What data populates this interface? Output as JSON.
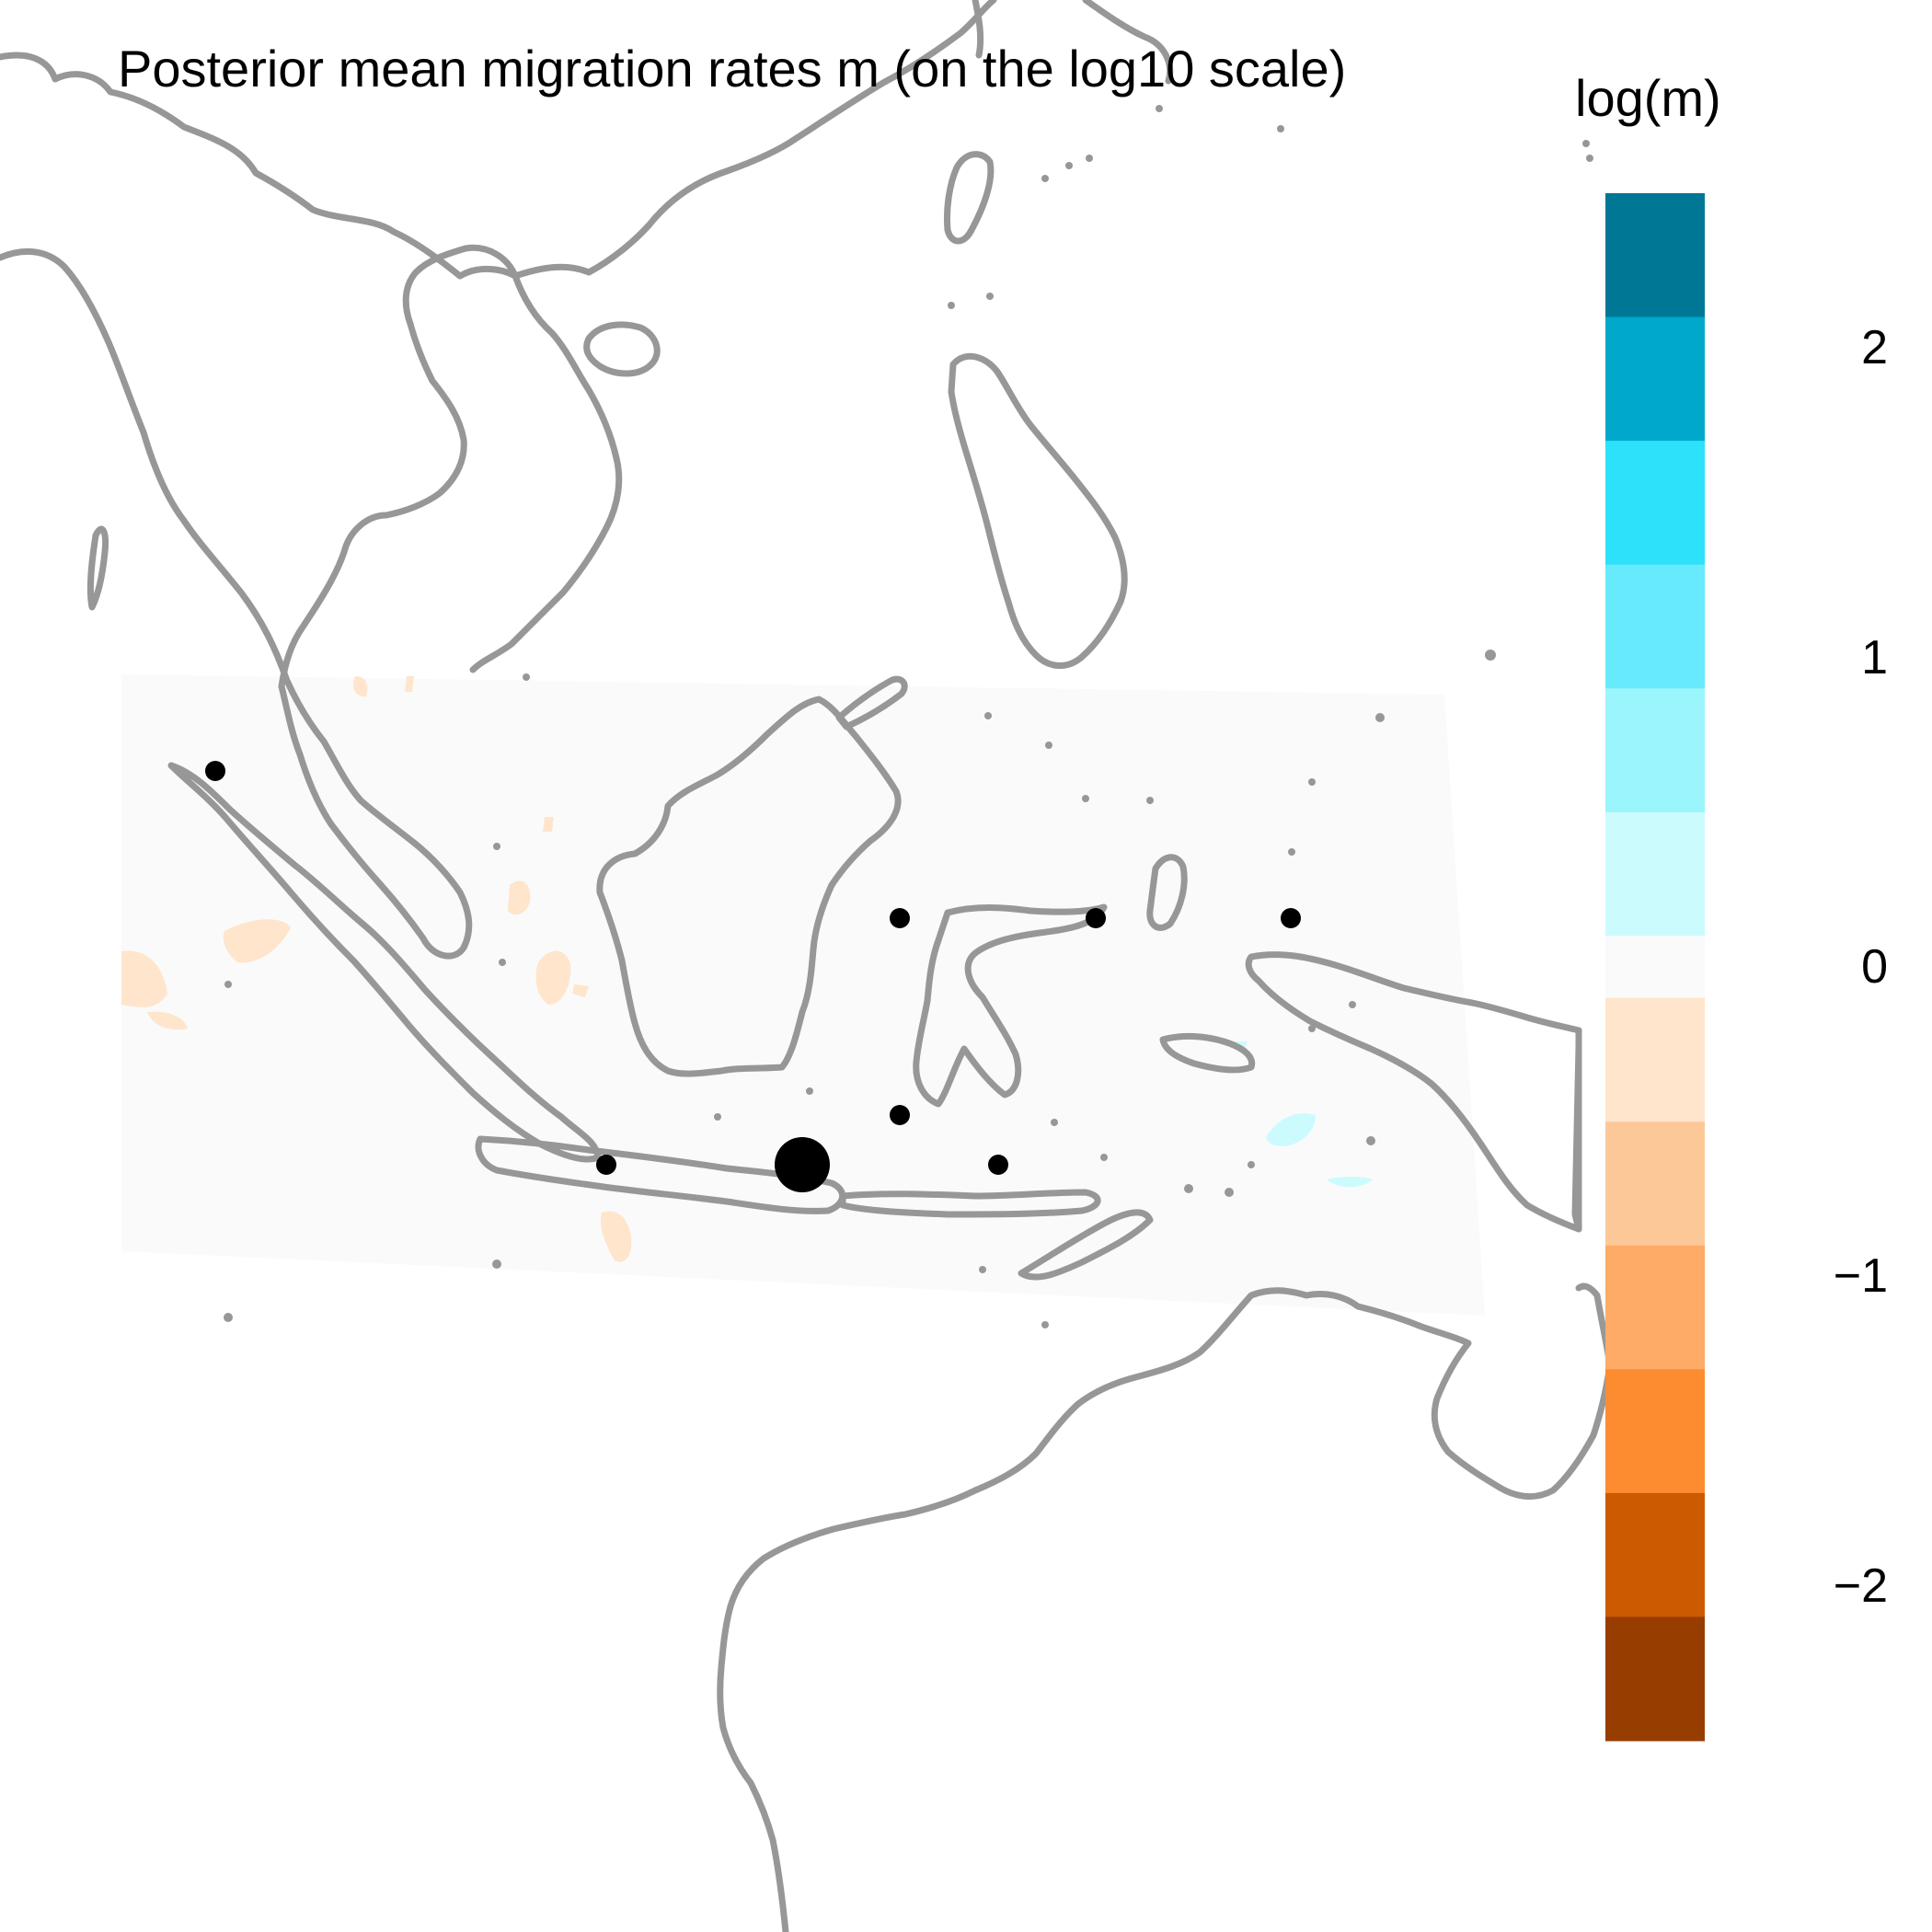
{
  "title": "Posterior mean migration rates m (on the log10 scale)",
  "legend": {
    "title": "log(m)",
    "ticks": [
      {
        "value": 2,
        "label": "2"
      },
      {
        "value": 1,
        "label": "1"
      },
      {
        "value": 0,
        "label": "0"
      },
      {
        "value": -1,
        "label": "−1"
      },
      {
        "value": -2,
        "label": "−2"
      }
    ],
    "range": [
      -2.5,
      2.5
    ],
    "bins": [
      {
        "from": 2.1,
        "to": 2.5,
        "color": "#007895"
      },
      {
        "from": 1.7,
        "to": 2.1,
        "color": "#00a9cb"
      },
      {
        "from": 1.3,
        "to": 1.7,
        "color": "#2de1fb"
      },
      {
        "from": 0.9,
        "to": 1.3,
        "color": "#67eafc"
      },
      {
        "from": 0.5,
        "to": 0.9,
        "color": "#9af5fc"
      },
      {
        "from": 0.1,
        "to": 0.5,
        "color": "#ccfbfe"
      },
      {
        "from": -0.1,
        "to": 0.1,
        "color": "#fafafa"
      },
      {
        "from": -0.5,
        "to": -0.1,
        "color": "#fee5cc"
      },
      {
        "from": -0.9,
        "to": -0.5,
        "color": "#fdc898"
      },
      {
        "from": -1.3,
        "to": -0.9,
        "color": "#fdab67"
      },
      {
        "from": -1.7,
        "to": -1.3,
        "color": "#fd8c31"
      },
      {
        "from": -2.1,
        "to": -1.7,
        "color": "#cb5a00"
      },
      {
        "from": -2.5,
        "to": -2.1,
        "color": "#973d00"
      }
    ]
  },
  "colors": {
    "coastline": "#979797",
    "neutral_surface": "#fafafa",
    "low_patch": "#fee5cc",
    "high_patch": "#ccfbfe",
    "demes": "#000000"
  }
}
